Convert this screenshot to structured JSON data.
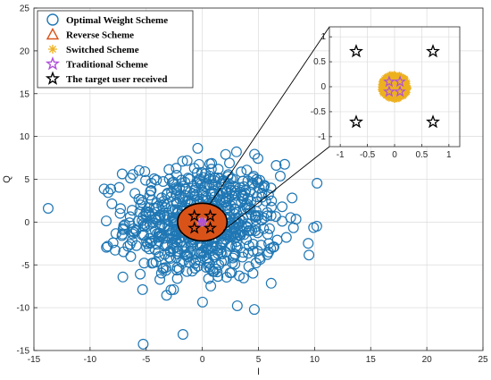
{
  "chart_data": [
    {
      "type": "scatter",
      "title": "",
      "xlabel": "I",
      "ylabel": "Q",
      "xlim": [
        -15,
        25
      ],
      "ylim": [
        -15,
        25
      ],
      "xticks": [
        -15,
        -10,
        -5,
        0,
        5,
        10,
        15,
        20,
        25
      ],
      "yticks": [
        -15,
        -10,
        -5,
        0,
        5,
        10,
        15,
        20,
        25
      ],
      "grid": true,
      "legend_position": "top-left",
      "series": [
        {
          "name": "Optimal Weight Scheme",
          "marker": "circle",
          "color": "#1f77b4",
          "distribution": "complex Gaussian cloud centered at origin",
          "std": 3.4,
          "count": 700
        },
        {
          "name": "Reverse Scheme",
          "marker": "triangle",
          "color": "#d95319",
          "distribution": "cluster within radius 2 of origin",
          "count": 300
        },
        {
          "name": "Switched Scheme",
          "marker": "asterisk",
          "color": "#edb120",
          "distribution": "cluster within radius 0.3 of origin",
          "count": 400
        },
        {
          "name": "Traditional Scheme",
          "marker": "star",
          "color": "#b04fd9",
          "points": [
            [
              -0.1,
              0.1
            ],
            [
              0.1,
              0.1
            ],
            [
              -0.1,
              -0.1
            ],
            [
              0.1,
              -0.1
            ]
          ]
        },
        {
          "name": "The target user received",
          "marker": "star",
          "color": "#000000",
          "points": [
            [
              -0.707,
              0.707
            ],
            [
              0.707,
              0.707
            ],
            [
              -0.707,
              -0.707
            ],
            [
              0.707,
              -0.707
            ]
          ]
        }
      ],
      "highlight_ellipse": {
        "center": [
          0,
          0
        ],
        "radius": 2.2
      }
    },
    {
      "type": "scatter",
      "role": "zoomed inset",
      "xlim": [
        -1.2,
        1.2
      ],
      "ylim": [
        -1.2,
        1.2
      ],
      "xticks": [
        -1,
        -0.5,
        0,
        0.5,
        1
      ],
      "yticks": [
        -1,
        -0.5,
        0,
        0.5,
        1
      ],
      "tick_labels_x": [
        "-1",
        "-0.5",
        "0",
        "0.5",
        "1"
      ],
      "tick_labels_y": [
        "-1",
        "-0.5",
        "0",
        "0.5",
        "1"
      ],
      "grid": true,
      "series": [
        {
          "name": "Switched Scheme",
          "marker": "asterisk",
          "color": "#edb120",
          "distribution": "cluster within radius 0.3 of origin"
        },
        {
          "name": "Traditional Scheme",
          "marker": "star",
          "color": "#b04fd9",
          "points": [
            [
              -0.1,
              0.1
            ],
            [
              0.1,
              0.1
            ],
            [
              -0.1,
              -0.1
            ],
            [
              0.1,
              -0.1
            ]
          ]
        },
        {
          "name": "The target user received",
          "marker": "star",
          "color": "#000000",
          "points": [
            [
              -0.707,
              0.707
            ],
            [
              0.707,
              0.707
            ],
            [
              -0.707,
              -0.707
            ],
            [
              0.707,
              -0.707
            ]
          ]
        }
      ]
    }
  ]
}
